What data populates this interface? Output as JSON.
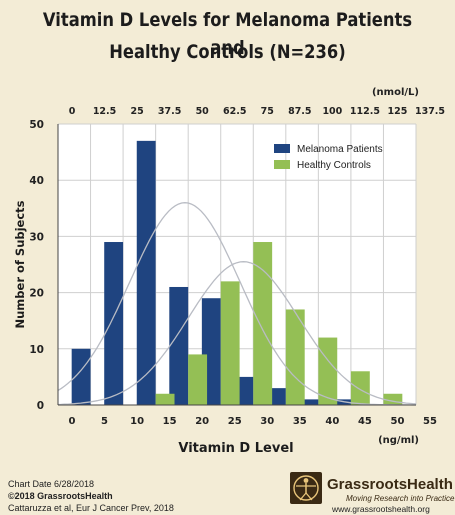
{
  "chart_data": {
    "type": "bar",
    "title_line1": "Vitamin D Levels for Melanoma Patients and",
    "title_line2": "Healthy Controls (N=236)",
    "ylabel": "Number of Subjects",
    "xlabel": "Vitamin D Level",
    "x_unit": "(ng/ml)",
    "top_unit": "(nmol/L)",
    "ylim": [
      0,
      50
    ],
    "yticks": [
      0,
      10,
      20,
      30,
      40,
      50
    ],
    "xlim": [
      0,
      55
    ],
    "xticks": [
      0,
      5,
      10,
      15,
      20,
      25,
      30,
      35,
      40,
      45,
      50,
      55
    ],
    "top_ticks": [
      "0",
      "12.5",
      "25",
      "37.5",
      "50",
      "62.5",
      "75",
      "87.5",
      "100",
      "112.5",
      "125",
      "137.5"
    ],
    "grid": true,
    "legend_position": "top-right",
    "categories": [
      5,
      10,
      15,
      20,
      25,
      30,
      35,
      40,
      45,
      50
    ],
    "series": [
      {
        "name": "Melanoma Patients",
        "color": "#1f4480",
        "values": [
          10,
          29,
          47,
          21,
          19,
          5,
          3,
          1,
          1,
          0
        ]
      },
      {
        "name": "Healthy Controls",
        "color": "#94bf55",
        "values": [
          0,
          0,
          2,
          9,
          22,
          29,
          17,
          12,
          6,
          2
        ]
      }
    ],
    "curves": {
      "color": "#b9bcc4",
      "melanoma_fit": {
        "mean": 19.5,
        "sd": 8.5,
        "peak": 36
      },
      "controls_fit": {
        "mean": 28.5,
        "sd": 8.5,
        "peak": 25.5
      }
    }
  },
  "footer": {
    "chart_date": "Chart Date 6/28/2018",
    "copyright": "©2018 GrassrootsHealth",
    "citation": "Cattaruzza et al, Eur J Cancer Prev, 2018",
    "logo_name": "GrassrootsHealth",
    "logo_tagline": "Moving Research into Practice",
    "logo_url": "www.grassrootshealth.org",
    "logo_icon": "vitruvian-man-icon"
  }
}
